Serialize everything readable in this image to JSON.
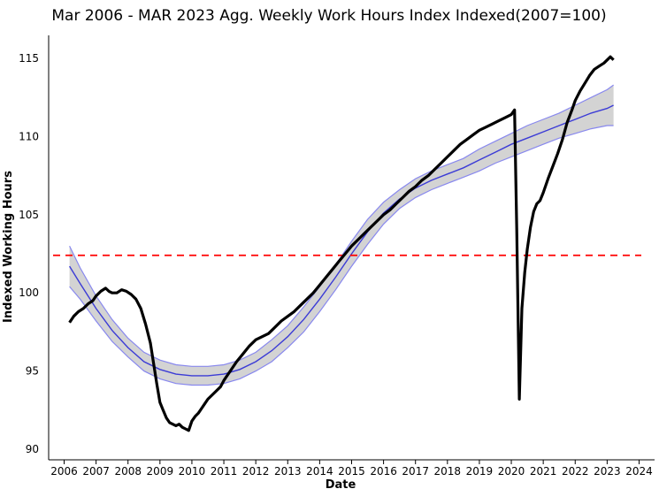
{
  "chart_data": {
    "type": "line",
    "title": "Mar 2006 - MAR 2023 Agg. Weekly Work Hours Index Indexed(2007=100)",
    "xlabel": "Date",
    "ylabel": "Indexed Working Hours",
    "xlim": [
      2006,
      2024
    ],
    "ylim": [
      90,
      116.5
    ],
    "x_ticks": [
      "2006",
      "2007",
      "2008",
      "2009",
      "2010",
      "2011",
      "2012",
      "2013",
      "2014",
      "2015",
      "2016",
      "2017",
      "2018",
      "2019",
      "2020",
      "2021",
      "2022",
      "2023",
      "2024"
    ],
    "y_ticks": [
      "90",
      "95",
      "100",
      "105",
      "110",
      "115"
    ],
    "grid": false,
    "legend": "none",
    "colors": {
      "index_line": "#000000",
      "trend_line": "#3b3bd6",
      "band_fill": "#d3d3d3",
      "band_edge": "#8888ee",
      "reference_line": "#ff0000"
    },
    "reference_line": {
      "y": 102.4,
      "style": "dashed"
    },
    "series": [
      {
        "role": "index",
        "x": [
          2006.17,
          2006.3,
          2006.45,
          2006.6,
          2006.75,
          2006.9,
          2007.0,
          2007.15,
          2007.3,
          2007.4,
          2007.5,
          2007.65,
          2007.8,
          2007.95,
          2008.1,
          2008.25,
          2008.4,
          2008.55,
          2008.7,
          2008.8,
          2008.9,
          2009.0,
          2009.1,
          2009.2,
          2009.3,
          2009.4,
          2009.5,
          2009.6,
          2009.7,
          2009.8,
          2009.9,
          2010.0,
          2010.1,
          2010.2,
          2010.3,
          2010.4,
          2010.5,
          2010.6,
          2010.75,
          2010.9,
          2011.0,
          2011.2,
          2011.4,
          2011.6,
          2011.8,
          2012.0,
          2012.2,
          2012.4,
          2012.6,
          2012.8,
          2013.0,
          2013.2,
          2013.4,
          2013.6,
          2013.8,
          2014.0,
          2014.2,
          2014.4,
          2014.6,
          2014.8,
          2015.0,
          2015.2,
          2015.4,
          2015.6,
          2015.8,
          2016.0,
          2016.2,
          2016.4,
          2016.6,
          2016.8,
          2017.0,
          2017.2,
          2017.4,
          2017.6,
          2017.8,
          2018.0,
          2018.2,
          2018.4,
          2018.6,
          2018.8,
          2019.0,
          2019.2,
          2019.4,
          2019.6,
          2019.8,
          2020.0,
          2020.1,
          2020.17,
          2020.25,
          2020.33,
          2020.42,
          2020.5,
          2020.6,
          2020.7,
          2020.8,
          2020.9,
          2021.0,
          2021.15,
          2021.3,
          2021.45,
          2021.6,
          2021.75,
          2021.9,
          2022.0,
          2022.15,
          2022.3,
          2022.45,
          2022.6,
          2022.75,
          2022.9,
          2023.0,
          2023.1,
          2023.2
        ],
        "values": [
          98.1,
          98.5,
          98.8,
          99.0,
          99.3,
          99.5,
          99.8,
          100.1,
          100.3,
          100.1,
          100.0,
          100.0,
          100.2,
          100.1,
          99.9,
          99.6,
          99.0,
          98.0,
          96.8,
          95.5,
          94.2,
          93.0,
          92.5,
          92.0,
          91.7,
          91.6,
          91.5,
          91.6,
          91.4,
          91.3,
          91.2,
          91.8,
          92.1,
          92.3,
          92.6,
          92.9,
          93.2,
          93.4,
          93.7,
          94.0,
          94.4,
          95.0,
          95.6,
          96.1,
          96.6,
          97.0,
          97.2,
          97.4,
          97.8,
          98.2,
          98.5,
          98.8,
          99.2,
          99.6,
          100.0,
          100.5,
          101.0,
          101.5,
          102.0,
          102.5,
          103.0,
          103.4,
          103.8,
          104.2,
          104.6,
          105.0,
          105.3,
          105.7,
          106.1,
          106.5,
          106.8,
          107.2,
          107.5,
          107.9,
          108.3,
          108.7,
          109.1,
          109.5,
          109.8,
          110.1,
          110.4,
          110.6,
          110.8,
          111.0,
          111.2,
          111.4,
          111.7,
          104.0,
          93.2,
          99.0,
          101.3,
          102.8,
          104.2,
          105.2,
          105.7,
          105.9,
          106.4,
          107.3,
          108.1,
          108.9,
          109.8,
          110.9,
          111.7,
          112.3,
          112.9,
          113.4,
          113.9,
          114.3,
          114.5,
          114.7,
          114.9,
          115.1,
          114.9
        ]
      },
      {
        "role": "trend",
        "x": [
          2006.17,
          2006.5,
          2007.0,
          2007.5,
          2008.0,
          2008.5,
          2009.0,
          2009.5,
          2010.0,
          2010.5,
          2011.0,
          2011.5,
          2012.0,
          2012.5,
          2013.0,
          2013.5,
          2014.0,
          2014.5,
          2015.0,
          2015.5,
          2016.0,
          2016.5,
          2017.0,
          2017.5,
          2018.0,
          2018.5,
          2019.0,
          2019.5,
          2020.0,
          2020.5,
          2021.0,
          2021.5,
          2022.0,
          2022.5,
          2023.0,
          2023.2
        ],
        "values": [
          101.7,
          100.6,
          99.0,
          97.6,
          96.5,
          95.6,
          95.1,
          94.8,
          94.7,
          94.7,
          94.8,
          95.1,
          95.6,
          96.3,
          97.2,
          98.3,
          99.6,
          101.0,
          102.5,
          103.9,
          105.1,
          106.0,
          106.7,
          107.2,
          107.6,
          108.0,
          108.5,
          109.0,
          109.5,
          109.9,
          110.3,
          110.7,
          111.1,
          111.5,
          111.8,
          112.0
        ],
        "lower": [
          100.4,
          99.6,
          98.2,
          96.9,
          95.9,
          95.0,
          94.5,
          94.2,
          94.1,
          94.1,
          94.2,
          94.5,
          95.0,
          95.6,
          96.5,
          97.5,
          98.8,
          100.2,
          101.7,
          103.1,
          104.4,
          105.4,
          106.1,
          106.6,
          107.0,
          107.4,
          107.8,
          108.3,
          108.7,
          109.1,
          109.5,
          109.9,
          110.2,
          110.5,
          110.7,
          110.7
        ],
        "upper": [
          103.0,
          101.6,
          99.8,
          98.3,
          97.1,
          96.2,
          95.7,
          95.4,
          95.3,
          95.3,
          95.4,
          95.7,
          96.2,
          97.0,
          97.9,
          99.1,
          100.4,
          101.8,
          103.3,
          104.7,
          105.8,
          106.6,
          107.3,
          107.8,
          108.2,
          108.6,
          109.2,
          109.7,
          110.2,
          110.7,
          111.1,
          111.5,
          112.0,
          112.5,
          113.0,
          113.3
        ]
      }
    ]
  }
}
